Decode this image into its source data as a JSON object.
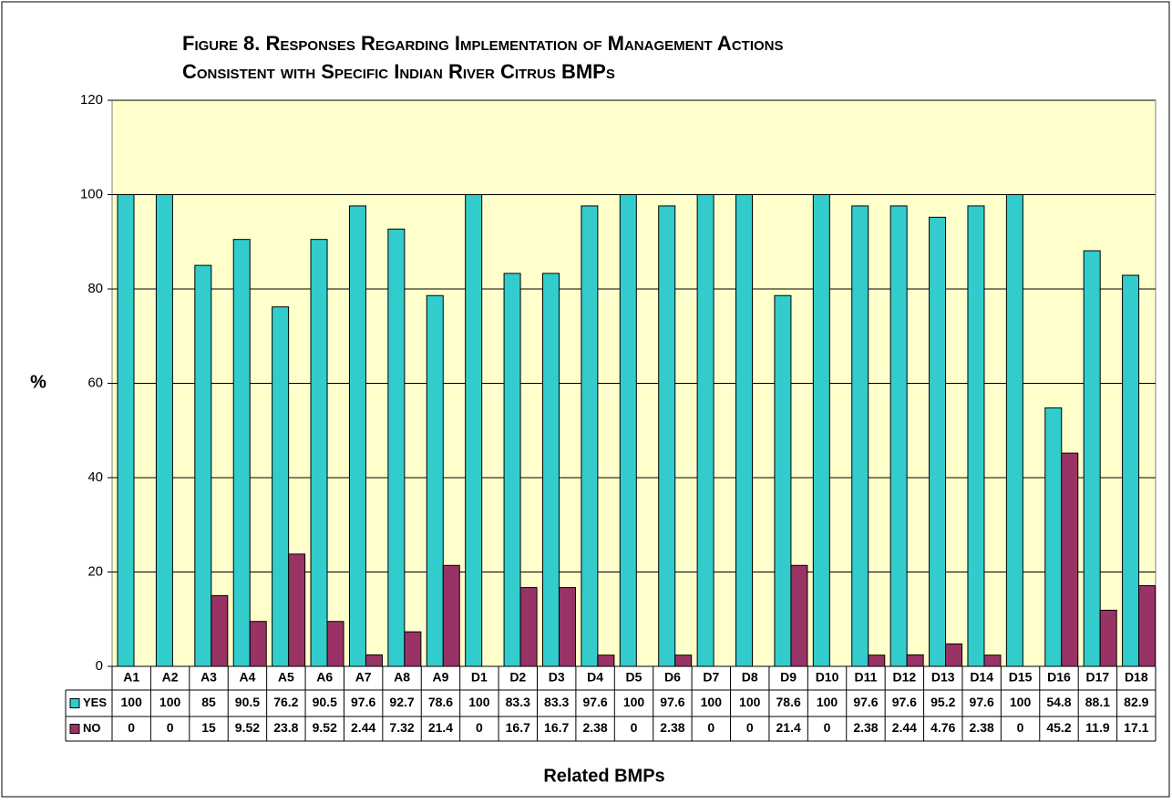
{
  "chart_data": {
    "type": "bar",
    "title": [
      "Figure 8.  Responses Regarding Implementation of Management Actions",
      "Consistent with Specific Indian River Citrus BMPs"
    ],
    "y_label": "%",
    "x_label": "Related BMPs",
    "categories": [
      "A1",
      "A2",
      "A3",
      "A4",
      "A5",
      "A6",
      "A7",
      "A8",
      "A9",
      "D1",
      "D2",
      "D3",
      "D4",
      "D5",
      "D6",
      "D7",
      "D8",
      "D9",
      "D10",
      "D11",
      "D12",
      "D13",
      "D14",
      "D15",
      "D16",
      "D17",
      "D18"
    ],
    "series": [
      {
        "name": "YES",
        "color": "#33cccc",
        "values": [
          100,
          100,
          85,
          90.5,
          76.2,
          90.5,
          97.6,
          92.7,
          78.6,
          100,
          83.3,
          83.3,
          97.6,
          100,
          97.6,
          100,
          100,
          78.6,
          100,
          97.6,
          97.6,
          95.2,
          97.6,
          100,
          54.8,
          88.1,
          82.9
        ]
      },
      {
        "name": "NO",
        "color": "#993366",
        "values": [
          0,
          0,
          15,
          9.52,
          23.8,
          9.52,
          2.44,
          7.32,
          21.4,
          0,
          16.7,
          16.7,
          2.38,
          0,
          2.38,
          0,
          0,
          21.4,
          0,
          2.38,
          2.44,
          4.76,
          2.38,
          0,
          45.2,
          11.9,
          17.1
        ]
      }
    ],
    "ylim": [
      0,
      120
    ],
    "yticks": [
      0,
      20,
      40,
      60,
      80,
      100,
      120
    ],
    "grid": true,
    "plot_background": "#ffffcc"
  }
}
